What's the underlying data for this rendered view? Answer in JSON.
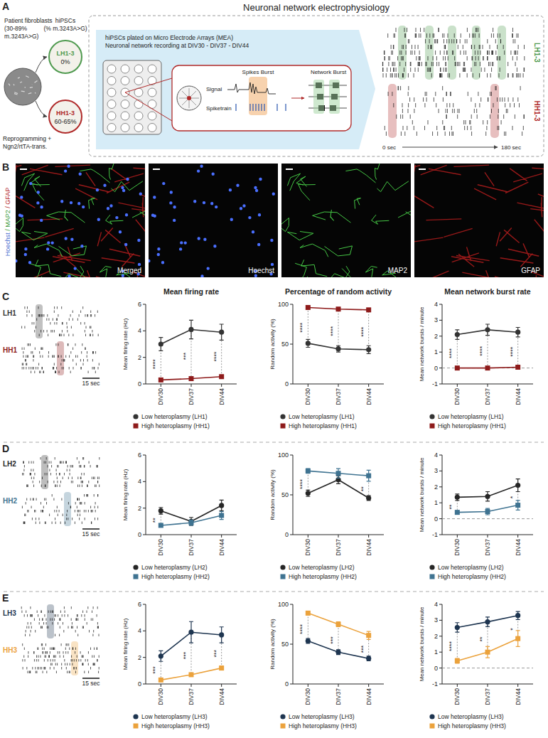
{
  "panel_labels": [
    "A",
    "B",
    "C",
    "D",
    "E"
  ],
  "panel_a": {
    "title": "Neuronal network electrophysiology",
    "fibroblast_lines": [
      "Patient fibroblasts",
      "(30-89%",
      "m.3243A>G)"
    ],
    "hipsc_lines": [
      "hiPSCs",
      "(% m.3243A>G)"
    ],
    "groups": [
      {
        "name": "LH1-3",
        "value": "0%",
        "color": "#4f9a4f"
      },
      {
        "name": "HH1-3",
        "value": "60-65%",
        "color": "#b02a2a"
      }
    ],
    "reprogramming_lines": [
      "Reprogramming +",
      "Ngn2/rtTA-trans."
    ],
    "mea_lines": [
      "hiPSCs plated on Micro Electrode Arrays (MEA)",
      "Neuronal network recording at DIV30 - DIV37 - DIV44"
    ],
    "inset_labels": [
      "Spikes Burst",
      "Signal",
      "Spiketrain",
      "Network Burst"
    ],
    "time_labels": [
      "0 sec",
      "180 sec"
    ]
  },
  "panel_b": {
    "stain_parts": [
      {
        "text": "Hoechst",
        "color": "#4a6fd0"
      },
      {
        "text": " / MAP2",
        "color": "#3a9a3a"
      },
      {
        "text": " / GFAP",
        "color": "#b02020"
      }
    ],
    "images": [
      "Merged",
      "Hoechst",
      "MAP2",
      "GFAP"
    ]
  },
  "rows": [
    {
      "labels": [
        "LH1",
        "HH1"
      ],
      "scale_bar": "15 sec"
    },
    {
      "labels": [
        "LH2",
        "HH2"
      ],
      "scale_bar": "15 sec"
    },
    {
      "labels": [
        "LH3",
        "HH3"
      ],
      "scale_bar": "15 sec"
    }
  ],
  "chart_data": [
    {
      "type": "line",
      "title": "Mean firing rate",
      "y_label": "Mean firing rate (Hz)",
      "categories": [
        "DIV30",
        "DIV37",
        "DIV44"
      ],
      "ylim": [
        0,
        6
      ],
      "yticks": [
        0,
        2,
        4,
        6
      ],
      "legend": "bottom",
      "series": [
        {
          "name": "Low heteroplasmy (LH1)",
          "color": "#333333",
          "marker": "circle",
          "values": [
            3.0,
            4.1,
            3.9
          ],
          "errors": [
            0.5,
            0.7,
            0.6
          ]
        },
        {
          "name": "High heteroplasmy (HH1)",
          "color": "#8e1b1b",
          "marker": "square",
          "values": [
            0.3,
            0.4,
            0.55
          ],
          "errors": [
            0.05,
            0.05,
            0.06
          ]
        }
      ],
      "annotations": [
        {
          "category": 0,
          "text": "****"
        },
        {
          "category": 1,
          "text": "***"
        },
        {
          "category": 2,
          "text": "****"
        }
      ]
    },
    {
      "type": "line",
      "title": "Percentage of random activity",
      "y_label": "Random activity (%)",
      "categories": [
        "DIV30",
        "DIV37",
        "DIV44"
      ],
      "ylim": [
        0,
        100
      ],
      "yticks": [
        0,
        50,
        100
      ],
      "legend": "bottom",
      "series": [
        {
          "name": "Low heteroplasmy (LH1)",
          "color": "#333333",
          "marker": "circle",
          "values": [
            51,
            44,
            43
          ],
          "errors": [
            5,
            4,
            5
          ]
        },
        {
          "name": "High heteroplasmy (HH1)",
          "color": "#8e1b1b",
          "marker": "square",
          "values": [
            96,
            94,
            93
          ],
          "errors": [
            1,
            1,
            1
          ]
        }
      ],
      "annotations": [
        {
          "category": 0,
          "text": "****"
        },
        {
          "category": 1,
          "text": "****"
        },
        {
          "category": 2,
          "text": "****"
        }
      ]
    },
    {
      "type": "line",
      "title": "Mean network burst rate",
      "y_label": "Mean network bursts / minute",
      "categories": [
        "DIV30",
        "DIV37",
        "DIV44"
      ],
      "ylim": [
        -1,
        4
      ],
      "yticks": [
        -1,
        0,
        1,
        2,
        3,
        4
      ],
      "reference_line": 0,
      "legend": "bottom",
      "series": [
        {
          "name": "Low heteroplasmy (LH1)",
          "color": "#333333",
          "marker": "circle",
          "values": [
            2.1,
            2.4,
            2.25
          ],
          "errors": [
            0.3,
            0.35,
            0.3
          ]
        },
        {
          "name": "High heteroplasmy (HH1)",
          "color": "#8e1b1b",
          "marker": "square",
          "values": [
            0,
            0,
            0.05
          ],
          "errors": [
            0.02,
            0.02,
            0.03
          ]
        }
      ],
      "annotations": [
        {
          "category": 0,
          "text": "****"
        },
        {
          "category": 1,
          "text": "****"
        },
        {
          "category": 2,
          "text": "****"
        }
      ]
    },
    {
      "type": "line",
      "y_label": "Mean firing rate (Hz)",
      "categories": [
        "DIV30",
        "DIV37",
        "DIV44"
      ],
      "ylim": [
        0,
        6
      ],
      "yticks": [
        0,
        2,
        4,
        6
      ],
      "legend": "bottom",
      "series": [
        {
          "name": "Low heteroplasmy (LH2)",
          "color": "#262626",
          "marker": "circle",
          "values": [
            1.8,
            1.0,
            2.2
          ],
          "errors": [
            0.25,
            0.3,
            0.4
          ]
        },
        {
          "name": "High heteroplasmy (HH2)",
          "color": "#3f7391",
          "marker": "square",
          "values": [
            0.7,
            0.9,
            1.45
          ],
          "errors": [
            0.1,
            0.2,
            0.3
          ]
        }
      ],
      "annotations": [
        {
          "category": 0,
          "text": "**"
        }
      ]
    },
    {
      "type": "line",
      "y_label": "Random activity (%)",
      "categories": [
        "DIV30",
        "DIV37",
        "DIV44"
      ],
      "ylim": [
        0,
        100
      ],
      "yticks": [
        0,
        50,
        100
      ],
      "legend": "bottom",
      "series": [
        {
          "name": "Low heteroplasmy (LH2)",
          "color": "#262626",
          "marker": "circle",
          "values": [
            52,
            69,
            46
          ],
          "errors": [
            4,
            5,
            3
          ]
        },
        {
          "name": "High heteroplasmy (HH2)",
          "color": "#3f7391",
          "marker": "square",
          "values": [
            80,
            77,
            74
          ],
          "errors": [
            3,
            6,
            7
          ]
        }
      ],
      "annotations": [
        {
          "category": 0,
          "text": "****"
        },
        {
          "category": 2,
          "text": "**"
        }
      ]
    },
    {
      "type": "line",
      "y_label": "Mean network bursts / minute",
      "categories": [
        "DIV30",
        "DIV37",
        "DIV44"
      ],
      "ylim": [
        -1,
        4
      ],
      "yticks": [
        -1,
        0,
        1,
        2,
        3,
        4
      ],
      "reference_line": 0,
      "legend": "bottom",
      "series": [
        {
          "name": "Low heteroplasmy (LH2)",
          "color": "#262626",
          "marker": "circle",
          "values": [
            1.35,
            1.4,
            2.1
          ],
          "errors": [
            0.2,
            0.3,
            0.4
          ]
        },
        {
          "name": "High heteroplasmy (HH2)",
          "color": "#3f7391",
          "marker": "square",
          "values": [
            0.4,
            0.45,
            0.85
          ],
          "errors": [
            0.1,
            0.2,
            0.3
          ]
        }
      ],
      "annotations": [
        {
          "category": 0,
          "text": "**"
        },
        {
          "category": 2,
          "text": "*"
        }
      ]
    },
    {
      "type": "line",
      "y_label": "Mean firing rate (Hz)",
      "categories": [
        "DIV30",
        "DIV37",
        "DIV44"
      ],
      "ylim": [
        0,
        6
      ],
      "yticks": [
        0,
        2,
        4,
        6
      ],
      "legend": "bottom",
      "series": [
        {
          "name": "Low heteroplasmy (LH3)",
          "color": "#1e3550",
          "marker": "circle",
          "values": [
            2.1,
            3.9,
            3.7
          ],
          "errors": [
            0.4,
            0.8,
            0.6
          ]
        },
        {
          "name": "High heteroplasmy (HH3)",
          "color": "#eba23c",
          "marker": "square",
          "values": [
            0.3,
            0.7,
            1.2
          ],
          "errors": [
            0.05,
            0.1,
            0.15
          ]
        }
      ],
      "annotations": [
        {
          "category": 0,
          "text": "***"
        },
        {
          "category": 1,
          "text": "***"
        },
        {
          "category": 2,
          "text": "***"
        }
      ]
    },
    {
      "type": "line",
      "y_label": "Random activity (%)",
      "categories": [
        "DIV30",
        "DIV37",
        "DIV44"
      ],
      "ylim": [
        0,
        100
      ],
      "yticks": [
        0,
        50,
        100
      ],
      "legend": "bottom",
      "series": [
        {
          "name": "Low heteroplasmy (LH3)",
          "color": "#1e3550",
          "marker": "circle",
          "values": [
            54,
            40,
            32
          ],
          "errors": [
            3,
            3,
            3
          ]
        },
        {
          "name": "High heteroplasmy (HH3)",
          "color": "#eba23c",
          "marker": "square",
          "values": [
            89,
            75,
            61
          ],
          "errors": [
            2,
            3,
            5
          ]
        }
      ],
      "annotations": [
        {
          "category": 0,
          "text": "****"
        },
        {
          "category": 1,
          "text": "***"
        },
        {
          "category": 2,
          "text": "***"
        }
      ]
    },
    {
      "type": "line",
      "y_label": "Mean network bursts / minute",
      "categories": [
        "DIV30",
        "DIV37",
        "DIV44"
      ],
      "ylim": [
        -1,
        4
      ],
      "yticks": [
        -1,
        0,
        1,
        2,
        3,
        4
      ],
      "reference_line": 0,
      "legend": "bottom",
      "series": [
        {
          "name": "Low heteroplasmy (LH3)",
          "color": "#1e3550",
          "marker": "circle",
          "values": [
            2.55,
            2.9,
            3.3
          ],
          "errors": [
            0.3,
            0.3,
            0.25
          ]
        },
        {
          "name": "High heteroplasmy (HH3)",
          "color": "#eba23c",
          "marker": "square",
          "values": [
            0.45,
            1.0,
            1.85
          ],
          "errors": [
            0.15,
            0.35,
            0.5
          ]
        }
      ],
      "annotations": [
        {
          "category": 0,
          "text": "****"
        },
        {
          "category": 1,
          "text": "**"
        },
        {
          "category": 2,
          "text": "*"
        }
      ]
    }
  ]
}
